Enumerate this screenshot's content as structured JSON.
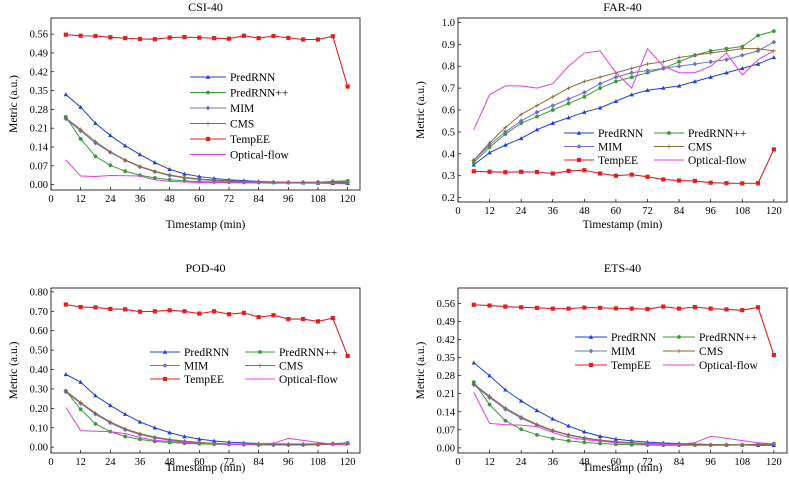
{
  "colors": {
    "PredRNN": "#1f3fd4",
    "PredRNN++": "#3a9a3a",
    "MIM": "#7070cc",
    "CMS": "#8a6a3a",
    "TempEE": "#e02020",
    "Optical-flow": "#e040e0"
  },
  "chart_data": [
    {
      "type": "line",
      "title": "CSI-40",
      "xlabel": "Timestamp (min)",
      "ylabel": "Metric (a.u.)",
      "xlim": [
        0,
        125
      ],
      "xticks": [
        "0",
        "12",
        "24",
        "36",
        "48",
        "60",
        "72",
        "84",
        "96",
        "108",
        "120"
      ],
      "ylim": [
        -0.02,
        0.62
      ],
      "yticks": [
        "0.00",
        "0.07",
        "0.14",
        "0.21",
        "0.28",
        "0.35",
        "0.42",
        "0.49",
        "0.56"
      ],
      "legend": "center-right",
      "x": [
        6,
        12,
        18,
        24,
        30,
        36,
        42,
        48,
        54,
        60,
        66,
        72,
        78,
        84,
        90,
        96,
        102,
        108,
        114,
        120
      ],
      "series": [
        {
          "name": "PredRNN",
          "values": [
            0.335,
            0.288,
            0.228,
            0.183,
            0.145,
            0.112,
            0.082,
            0.057,
            0.04,
            0.03,
            0.023,
            0.018,
            0.015,
            0.012,
            0.01,
            0.008,
            0.007,
            0.006,
            0.005,
            0.005
          ]
        },
        {
          "name": "PredRNN++",
          "values": [
            0.252,
            0.17,
            0.105,
            0.072,
            0.05,
            0.035,
            0.025,
            0.018,
            0.014,
            0.011,
            0.01,
            0.009,
            0.008,
            0.008,
            0.008,
            0.008,
            0.008,
            0.009,
            0.012,
            0.014
          ]
        },
        {
          "name": "MIM",
          "values": [
            0.245,
            0.2,
            0.155,
            0.12,
            0.09,
            0.066,
            0.048,
            0.034,
            0.025,
            0.019,
            0.015,
            0.012,
            0.01,
            0.009,
            0.008,
            0.008,
            0.008,
            0.008,
            0.008,
            0.008
          ]
        },
        {
          "name": "CMS",
          "values": [
            0.248,
            0.205,
            0.16,
            0.122,
            0.092,
            0.068,
            0.05,
            0.036,
            0.027,
            0.021,
            0.017,
            0.014,
            0.012,
            0.011,
            0.01,
            0.009,
            0.009,
            0.009,
            0.01,
            0.01
          ]
        },
        {
          "name": "TempEE",
          "values": [
            0.558,
            0.554,
            0.553,
            0.548,
            0.545,
            0.542,
            0.541,
            0.547,
            0.549,
            0.547,
            0.545,
            0.543,
            0.554,
            0.545,
            0.553,
            0.546,
            0.54,
            0.54,
            0.552,
            0.365
          ]
        },
        {
          "name": "Optical-flow",
          "values": [
            0.092,
            0.032,
            0.03,
            0.034,
            0.033,
            0.032,
            0.018,
            0.012,
            0.01,
            0.008,
            0.008,
            0.007,
            0.006,
            0.006,
            0.005,
            0.006,
            0.005,
            0.005,
            0.004,
            0.003
          ]
        }
      ]
    },
    {
      "type": "line",
      "title": "FAR-40",
      "xlabel": "Timestamp (min)",
      "ylabel": "Metric (a.u.)",
      "xlim": [
        0,
        125
      ],
      "xticks": [
        "0",
        "12",
        "24",
        "36",
        "48",
        "60",
        "72",
        "84",
        "96",
        "108",
        "120"
      ],
      "ylim": [
        0.18,
        1.02
      ],
      "yticks": [
        "0.2",
        "0.3",
        "0.4",
        "0.5",
        "0.6",
        "0.7",
        "0.8",
        "0.9",
        "1.0"
      ],
      "legend": "lower-center",
      "x": [
        6,
        12,
        18,
        24,
        30,
        36,
        42,
        48,
        54,
        60,
        66,
        72,
        78,
        84,
        90,
        96,
        102,
        108,
        114,
        120
      ],
      "series": [
        {
          "name": "PredRNN",
          "values": [
            0.35,
            0.405,
            0.44,
            0.47,
            0.51,
            0.54,
            0.565,
            0.59,
            0.61,
            0.64,
            0.67,
            0.69,
            0.7,
            0.71,
            0.73,
            0.75,
            0.77,
            0.79,
            0.81,
            0.84
          ]
        },
        {
          "name": "PredRNN++",
          "values": [
            0.36,
            0.43,
            0.49,
            0.54,
            0.57,
            0.6,
            0.63,
            0.66,
            0.7,
            0.73,
            0.75,
            0.77,
            0.79,
            0.82,
            0.85,
            0.87,
            0.88,
            0.89,
            0.94,
            0.96
          ]
        },
        {
          "name": "MIM",
          "values": [
            0.37,
            0.44,
            0.5,
            0.55,
            0.59,
            0.62,
            0.65,
            0.68,
            0.72,
            0.75,
            0.77,
            0.78,
            0.79,
            0.8,
            0.81,
            0.82,
            0.83,
            0.85,
            0.87,
            0.91
          ]
        },
        {
          "name": "CMS",
          "values": [
            0.37,
            0.45,
            0.52,
            0.58,
            0.62,
            0.66,
            0.7,
            0.73,
            0.75,
            0.77,
            0.79,
            0.81,
            0.82,
            0.84,
            0.85,
            0.86,
            0.87,
            0.88,
            0.88,
            0.87
          ]
        },
        {
          "name": "TempEE",
          "values": [
            0.32,
            0.318,
            0.316,
            0.318,
            0.317,
            0.31,
            0.322,
            0.325,
            0.31,
            0.3,
            0.305,
            0.295,
            0.283,
            0.278,
            0.276,
            0.268,
            0.266,
            0.265,
            0.266,
            0.42
          ]
        },
        {
          "name": "Optical-flow",
          "values": [
            0.51,
            0.67,
            0.71,
            0.71,
            0.7,
            0.72,
            0.8,
            0.86,
            0.87,
            0.77,
            0.7,
            0.88,
            0.8,
            0.77,
            0.77,
            0.8,
            0.86,
            0.76,
            0.83,
            0.87
          ]
        }
      ]
    },
    {
      "type": "line",
      "title": "POD-40",
      "xlabel": "Timestamp (min)",
      "ylabel": "Metric (a.u.)",
      "xlim": [
        0,
        125
      ],
      "xticks": [
        "0",
        "12",
        "24",
        "36",
        "48",
        "60",
        "72",
        "84",
        "96",
        "108",
        "120"
      ],
      "ylim": [
        -0.03,
        0.82
      ],
      "yticks": [
        "0.00",
        "0.10",
        "0.20",
        "0.30",
        "0.40",
        "0.50",
        "0.60",
        "0.70",
        "0.80"
      ],
      "legend": "center-right",
      "x": [
        6,
        12,
        18,
        24,
        30,
        36,
        42,
        48,
        54,
        60,
        66,
        72,
        78,
        84,
        90,
        96,
        102,
        108,
        114,
        120
      ],
      "series": [
        {
          "name": "PredRNN",
          "values": [
            0.375,
            0.335,
            0.265,
            0.215,
            0.17,
            0.13,
            0.1,
            0.075,
            0.055,
            0.042,
            0.032,
            0.026,
            0.022,
            0.019,
            0.017,
            0.016,
            0.016,
            0.017,
            0.018,
            0.02
          ]
        },
        {
          "name": "PredRNN++",
          "values": [
            0.29,
            0.195,
            0.12,
            0.08,
            0.055,
            0.04,
            0.03,
            0.024,
            0.02,
            0.017,
            0.015,
            0.014,
            0.013,
            0.012,
            0.012,
            0.012,
            0.012,
            0.014,
            0.018,
            0.022
          ]
        },
        {
          "name": "MIM",
          "values": [
            0.285,
            0.225,
            0.17,
            0.125,
            0.09,
            0.065,
            0.048,
            0.036,
            0.028,
            0.022,
            0.018,
            0.015,
            0.013,
            0.012,
            0.012,
            0.012,
            0.012,
            0.013,
            0.016,
            0.02
          ]
        },
        {
          "name": "CMS",
          "values": [
            0.29,
            0.23,
            0.175,
            0.13,
            0.095,
            0.07,
            0.052,
            0.04,
            0.031,
            0.025,
            0.02,
            0.017,
            0.015,
            0.013,
            0.012,
            0.012,
            0.012,
            0.013,
            0.015,
            0.018
          ]
        },
        {
          "name": "TempEE",
          "values": [
            0.735,
            0.722,
            0.72,
            0.712,
            0.71,
            0.698,
            0.7,
            0.705,
            0.7,
            0.688,
            0.7,
            0.685,
            0.692,
            0.67,
            0.68,
            0.66,
            0.66,
            0.648,
            0.665,
            0.47
          ]
        },
        {
          "name": "Optical-flow",
          "values": [
            0.205,
            0.085,
            0.082,
            0.08,
            0.07,
            0.05,
            0.035,
            0.03,
            0.025,
            0.02,
            0.018,
            0.015,
            0.015,
            0.018,
            0.02,
            0.045,
            0.035,
            0.025,
            0.015,
            0.01
          ]
        }
      ]
    },
    {
      "type": "line",
      "title": "ETS-40",
      "xlabel": "Timestamp (min)",
      "ylabel": "Metric (a.u.)",
      "xlim": [
        0,
        125
      ],
      "xticks": [
        "0",
        "12",
        "24",
        "36",
        "48",
        "60",
        "72",
        "84",
        "96",
        "108",
        "120"
      ],
      "ylim": [
        -0.02,
        0.62
      ],
      "yticks": [
        "0.00",
        "0.07",
        "0.14",
        "0.21",
        "0.28",
        "0.35",
        "0.42",
        "0.49",
        "0.56"
      ],
      "legend": "center-right",
      "x": [
        6,
        12,
        18,
        24,
        30,
        36,
        42,
        48,
        54,
        60,
        66,
        72,
        78,
        84,
        90,
        96,
        102,
        108,
        114,
        120
      ],
      "series": [
        {
          "name": "PredRNN",
          "values": [
            0.33,
            0.28,
            0.225,
            0.182,
            0.145,
            0.112,
            0.085,
            0.062,
            0.045,
            0.034,
            0.027,
            0.022,
            0.019,
            0.017,
            0.015,
            0.013,
            0.012,
            0.011,
            0.01,
            0.01
          ]
        },
        {
          "name": "PredRNN++",
          "values": [
            0.255,
            0.168,
            0.105,
            0.072,
            0.05,
            0.036,
            0.027,
            0.021,
            0.017,
            0.014,
            0.012,
            0.011,
            0.01,
            0.01,
            0.01,
            0.01,
            0.01,
            0.011,
            0.013,
            0.016
          ]
        },
        {
          "name": "MIM",
          "values": [
            0.245,
            0.195,
            0.15,
            0.115,
            0.088,
            0.066,
            0.049,
            0.037,
            0.029,
            0.023,
            0.019,
            0.016,
            0.014,
            0.013,
            0.012,
            0.012,
            0.012,
            0.012,
            0.014,
            0.016
          ]
        },
        {
          "name": "CMS",
          "values": [
            0.248,
            0.2,
            0.155,
            0.12,
            0.091,
            0.068,
            0.051,
            0.039,
            0.03,
            0.024,
            0.02,
            0.017,
            0.015,
            0.014,
            0.013,
            0.012,
            0.012,
            0.012,
            0.013,
            0.014
          ]
        },
        {
          "name": "TempEE",
          "values": [
            0.555,
            0.552,
            0.548,
            0.545,
            0.543,
            0.54,
            0.54,
            0.544,
            0.543,
            0.541,
            0.54,
            0.538,
            0.548,
            0.54,
            0.546,
            0.54,
            0.537,
            0.534,
            0.545,
            0.36
          ]
        },
        {
          "name": "Optical-flow",
          "values": [
            0.215,
            0.095,
            0.09,
            0.088,
            0.082,
            0.06,
            0.04,
            0.032,
            0.026,
            0.02,
            0.017,
            0.014,
            0.013,
            0.014,
            0.02,
            0.045,
            0.037,
            0.028,
            0.02,
            0.015
          ]
        }
      ]
    }
  ]
}
